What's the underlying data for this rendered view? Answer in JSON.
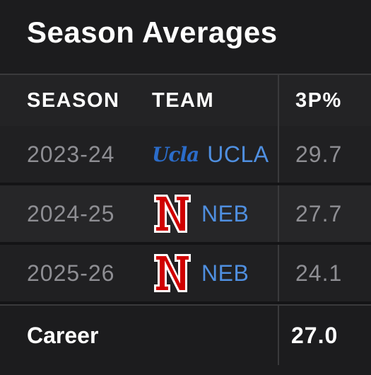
{
  "title": "Season Averages",
  "columns": {
    "season": "SEASON",
    "team": "TEAM",
    "three_pt": "3P%"
  },
  "rows": [
    {
      "season": "2023-24",
      "team_logo": "ucla-logo",
      "logo_text": "Ucla",
      "team": "UCLA",
      "three_pt": "29.7"
    },
    {
      "season": "2024-25",
      "team_logo": "nebraska-n-logo",
      "team": "NEB",
      "three_pt": "27.7"
    },
    {
      "season": "2025-26",
      "team_logo": "nebraska-n-logo",
      "team": "NEB",
      "three_pt": "24.1"
    }
  ],
  "career": {
    "label": "Career",
    "three_pt": "27.0"
  },
  "colors": {
    "background": "#1c1c1e",
    "team_link": "#4f8fe0",
    "nebraska_red": "#d00000",
    "muted_text": "#8e8e93"
  }
}
